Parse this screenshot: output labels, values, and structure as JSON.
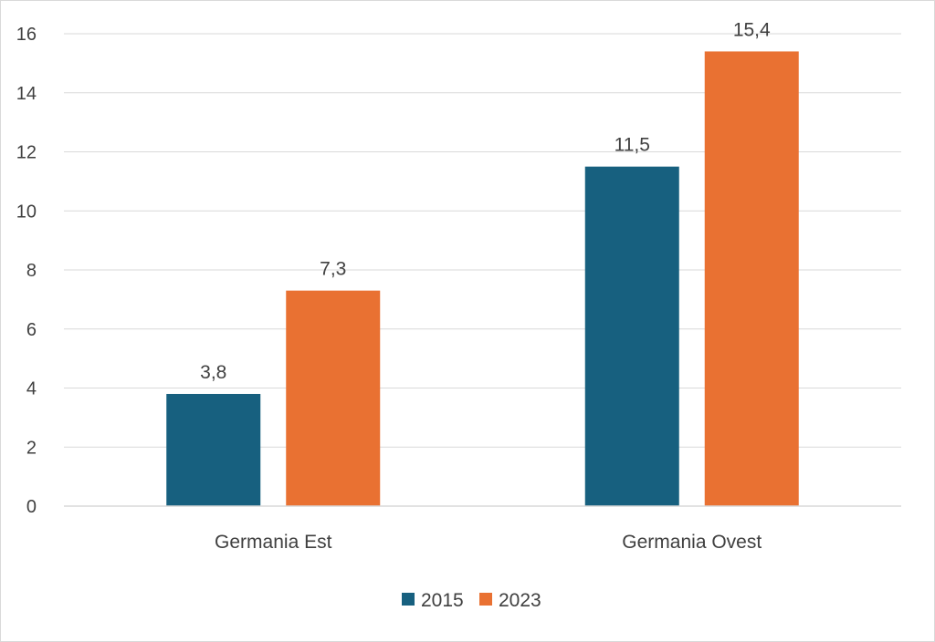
{
  "chart_data": {
    "type": "bar",
    "categories": [
      "Germania Est",
      "Germania Ovest"
    ],
    "series": [
      {
        "name": "2015",
        "values": [
          3.8,
          11.5
        ],
        "labels": [
          "3,8",
          "11,5"
        ],
        "color": "#17607f"
      },
      {
        "name": "2023",
        "values": [
          7.3,
          15.4
        ],
        "labels": [
          "7,3",
          "15,4"
        ],
        "color": "#e97132"
      }
    ],
    "yticks": [
      0,
      2,
      4,
      6,
      8,
      10,
      12,
      14,
      16
    ],
    "ylim": [
      0,
      16
    ],
    "title": "",
    "xlabel": "",
    "ylabel": "",
    "grid": true,
    "legend": "bottom-center"
  }
}
